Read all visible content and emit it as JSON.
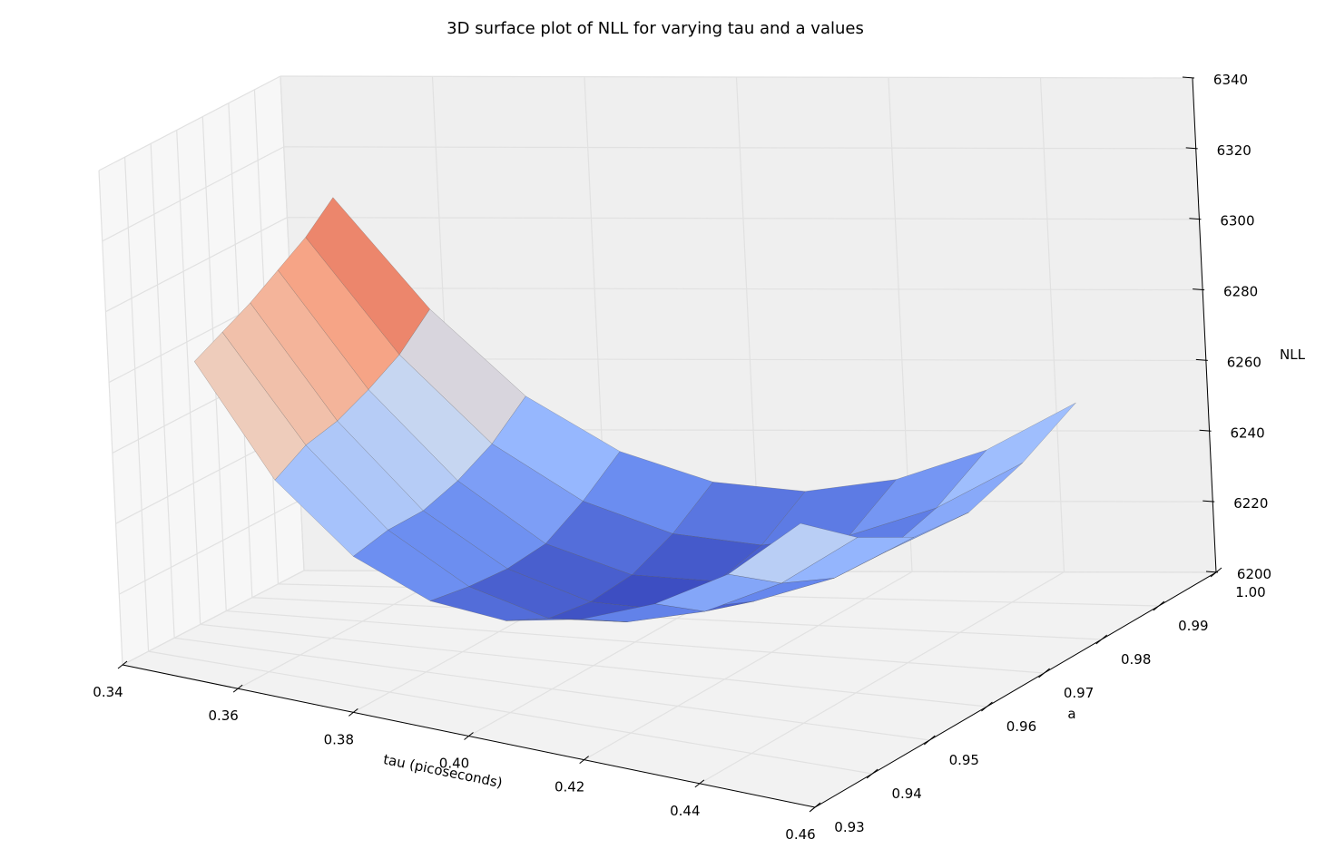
{
  "chart_data": {
    "type": "surface",
    "title": "3D surface plot of NLL for varying tau and a values",
    "xlabel": "tau (picoseconds)",
    "ylabel": "a",
    "zlabel": "NLL",
    "xlim": [
      0.34,
      0.46
    ],
    "ylim": [
      0.93,
      1.0
    ],
    "zlim": [
      6200,
      6340
    ],
    "x_ticks": [
      "0.34",
      "0.36",
      "0.38",
      "0.40",
      "0.42",
      "0.44",
      "0.46"
    ],
    "y_ticks": [
      "0.93",
      "0.94",
      "0.95",
      "0.96",
      "0.97",
      "0.98",
      "0.99",
      "1.00"
    ],
    "z_ticks": [
      "6200",
      "6220",
      "6240",
      "6260",
      "6280",
      "6300",
      "6320",
      "6340"
    ],
    "colormap": "coolwarm",
    "grid": true,
    "tau": [
      0.35,
      0.3625,
      0.375,
      0.3875,
      0.4,
      0.4125,
      0.425,
      0.4375,
      0.45
    ],
    "a": [
      0.94,
      0.95,
      0.96,
      0.97,
      0.98,
      0.99
    ],
    "NLL": [
      [
        6285,
        6255,
        6237,
        6228,
        6226,
        6230,
        6238,
        6250,
        6268
      ],
      [
        6289,
        6260,
        6239,
        6226,
        6220,
        6222,
        6228,
        6239,
        6255
      ],
      [
        6293,
        6262,
        6239,
        6225,
        6218,
        6218,
        6223,
        6232,
        6246
      ],
      [
        6298,
        6266,
        6242,
        6226,
        6219,
        6219,
        6222,
        6231,
        6244
      ],
      [
        6303,
        6271,
        6247,
        6232,
        6224,
        6222,
        6226,
        6235,
        6249
      ],
      [
        6310,
        6279,
        6255,
        6240,
        6232,
        6230,
        6234,
        6243,
        6257
      ]
    ]
  }
}
